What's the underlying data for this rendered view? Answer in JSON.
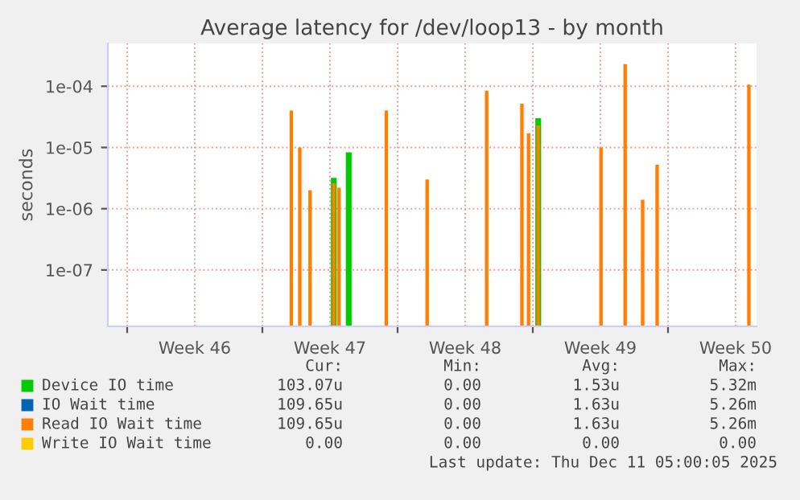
{
  "chart_data": {
    "type": "bar",
    "title": "Average latency for /dev/loop13 - by month",
    "ylabel": "seconds",
    "x": [
      "2025-11-17T12:00",
      "2025-11-17T22:30",
      "2025-11-18T11:15",
      "2025-11-19T16:45",
      "2025-11-19T23:15",
      "2025-11-20T11:15",
      "2025-11-22T10:00",
      "2025-11-24T12:45",
      "2025-11-27T14:40",
      "2025-11-29T10:30",
      "2025-11-29T18:45",
      "2025-11-30T06:45",
      "2025-12-03T12:45",
      "2025-12-04T18:45",
      "2025-12-05T16:30",
      "2025-12-06T10:30",
      "2025-12-11T04:30"
    ],
    "series": [
      {
        "name": "Device IO time",
        "color": "#00cc00",
        "values": [
          null,
          null,
          null,
          3.2e-06,
          null,
          8.3e-06,
          null,
          null,
          null,
          null,
          null,
          3e-05,
          null,
          null,
          null,
          null,
          null
        ]
      },
      {
        "name": "IO Wait time",
        "color": "#0066b3",
        "values": [
          null,
          null,
          null,
          null,
          null,
          null,
          null,
          null,
          null,
          null,
          null,
          null,
          null,
          null,
          null,
          null,
          null
        ]
      },
      {
        "name": "Read IO Wait time",
        "color": "#ff8000",
        "values": [
          4e-05,
          1e-05,
          2e-06,
          2.6e-06,
          2.2e-06,
          null,
          4e-05,
          3e-06,
          8.5e-05,
          5.2e-05,
          1.7e-05,
          2.3e-05,
          1e-05,
          0.00023,
          1.4e-06,
          5.2e-06,
          0.000106
        ]
      },
      {
        "name": "Write IO Wait time",
        "color": "#ffcc00",
        "values": [
          null,
          null,
          null,
          null,
          null,
          null,
          null,
          null,
          null,
          null,
          null,
          null,
          null,
          null,
          null,
          null,
          null
        ]
      }
    ],
    "log": "y",
    "ylim": [
      1.2e-08,
      0.0005
    ],
    "yticks": [
      {
        "value": 1e-07,
        "label": "1e-07"
      },
      {
        "value": 1e-06,
        "label": "1e-06"
      },
      {
        "value": 1e-05,
        "label": "1e-05"
      },
      {
        "value": 0.0001,
        "label": "1e-04"
      }
    ],
    "xlim": [
      "2025-11-08",
      "2025-12-11T14:00"
    ],
    "xticks": [
      {
        "value": "2025-11-09",
        "label": null
      },
      {
        "value": "2025-11-12T12:00",
        "label": "Week 46"
      },
      {
        "value": "2025-11-16",
        "label": null
      },
      {
        "value": "2025-11-19T12:00",
        "label": "Week 47"
      },
      {
        "value": "2025-11-23",
        "label": null
      },
      {
        "value": "2025-11-26T12:00",
        "label": "Week 48"
      },
      {
        "value": "2025-11-30",
        "label": null
      },
      {
        "value": "2025-12-03T12:00",
        "label": "Week 49"
      },
      {
        "value": "2025-12-07",
        "label": null
      },
      {
        "value": "2025-12-10T12:00",
        "label": "Week 50"
      }
    ],
    "grid": true,
    "legend": "bottom",
    "annotations": [
      "Cur:",
      "Min:",
      "Avg:",
      "Max:",
      "103.07u",
      "0.00",
      "1.53u",
      "5.32m",
      "109.65u",
      "0.00",
      "1.63u",
      "5.26m",
      "109.65u",
      "0.00",
      "1.63u",
      "5.26m",
      "0.00",
      "0.00",
      "0.00",
      "0.00",
      "Last update: Thu Dec 11 05:00:05 2025"
    ]
  }
}
